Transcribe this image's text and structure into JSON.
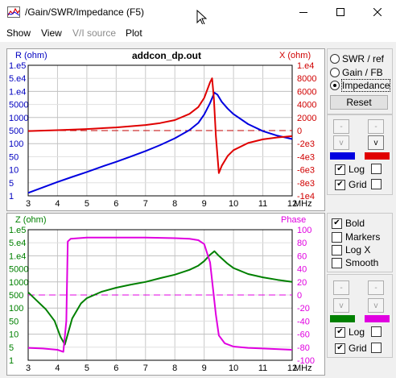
{
  "window": {
    "title": "/Gain/SWR/Impedance (F5)"
  },
  "menu": [
    "Show",
    "View",
    "V/I source",
    "Plot"
  ],
  "menu_disabled_index": 2,
  "top_chart": {
    "title": "addcon_dp.out",
    "left_label": "R (ohm)",
    "right_label": "X (ohm)",
    "left_ticks": [
      "1.e5",
      "5.e4",
      "1.e4",
      "5000",
      "1000",
      "500",
      "100",
      "50",
      "10",
      "5",
      "1"
    ],
    "right_ticks": [
      "1.e4",
      "8000",
      "6000",
      "4000",
      "2000",
      "0",
      "-2e3",
      "-4e3",
      "-6e3",
      "-8e3",
      "-1e4"
    ],
    "x_ticks": [
      "3",
      "4",
      "5",
      "6",
      "7",
      "8",
      "9",
      "10",
      "11",
      "12"
    ],
    "x_unit": "MHz"
  },
  "bottom_chart": {
    "left_label": "Z (ohm)",
    "right_label": "Phase",
    "left_ticks": [
      "1.e5",
      "5.e4",
      "1.e4",
      "5000",
      "1000",
      "500",
      "100",
      "50",
      "10",
      "5",
      "1"
    ],
    "right_ticks": [
      "100",
      "80",
      "60",
      "40",
      "20",
      "0",
      "-20",
      "-40",
      "-60",
      "-80",
      "-100"
    ],
    "x_ticks": [
      "3",
      "4",
      "5",
      "6",
      "7",
      "8",
      "9",
      "10",
      "11",
      "12"
    ],
    "x_unit": "MHz"
  },
  "chart_data": [
    {
      "type": "line",
      "title": "addcon_dp.out",
      "xlabel": "MHz",
      "ylabel": "R (ohm)",
      "y2label": "X (ohm)",
      "xlim": [
        3,
        12
      ],
      "ylim": [
        1,
        100000
      ],
      "y_scale": "log",
      "y2lim": [
        -10000,
        10000
      ],
      "grid": true,
      "series": [
        {
          "name": "R (ohm)",
          "axis": "left",
          "color": "#0000e0",
          "x": [
            3.0,
            3.5,
            4.0,
            4.5,
            5.0,
            5.5,
            6.0,
            6.5,
            7.0,
            7.5,
            8.0,
            8.5,
            8.8,
            9.0,
            9.2,
            9.35,
            9.45,
            9.6,
            9.8,
            10.0,
            10.5,
            11.0,
            11.5,
            12.0
          ],
          "y": [
            1.3,
            2.1,
            3.4,
            5.3,
            8.2,
            13,
            20,
            32,
            52,
            88,
            160,
            330,
            620,
            1300,
            3600,
            9000,
            7500,
            4000,
            2200,
            1350,
            560,
            300,
            200,
            150
          ]
        },
        {
          "name": "X (ohm)",
          "axis": "right",
          "color": "#e00000",
          "x": [
            3.0,
            4.0,
            5.0,
            6.0,
            7.0,
            7.5,
            8.0,
            8.5,
            8.8,
            9.0,
            9.2,
            9.27,
            9.33,
            9.4,
            9.5,
            9.6,
            9.8,
            10.0,
            10.5,
            11.0,
            11.5,
            12.0
          ],
          "y": [
            -80,
            60,
            240,
            480,
            850,
            1150,
            1600,
            2550,
            3600,
            5000,
            7400,
            8000,
            5000,
            -800,
            -6500,
            -5400,
            -3900,
            -3000,
            -1900,
            -1350,
            -1050,
            -850
          ]
        }
      ],
      "reference_line": {
        "axis": "right",
        "y": 0,
        "style": "dashed",
        "color": "#c00000"
      }
    },
    {
      "type": "line",
      "xlabel": "MHz",
      "ylabel": "Z (ohm)",
      "y2label": "Phase",
      "xlim": [
        3,
        12
      ],
      "ylim": [
        1,
        100000
      ],
      "y_scale": "log",
      "y2lim": [
        -100,
        100
      ],
      "grid": true,
      "series": [
        {
          "name": "Z (ohm)",
          "axis": "left",
          "color": "#008000",
          "x": [
            3.0,
            3.3,
            3.6,
            3.9,
            4.1,
            4.25,
            4.35,
            4.5,
            4.8,
            5.0,
            5.5,
            6.0,
            6.5,
            7.0,
            7.5,
            8.0,
            8.5,
            8.8,
            9.0,
            9.2,
            9.35,
            9.5,
            9.8,
            10.0,
            10.5,
            11.0,
            11.5,
            12.0
          ],
          "y": [
            400,
            190,
            90,
            32,
            8,
            4,
            10,
            40,
            150,
            240,
            420,
            600,
            790,
            1000,
            1400,
            1900,
            2900,
            4200,
            6300,
            11000,
            15000,
            10000,
            5000,
            3400,
            2000,
            1500,
            1200,
            1000
          ]
        },
        {
          "name": "Phase",
          "axis": "right",
          "color": "#e000e0",
          "x": [
            3.0,
            3.5,
            4.0,
            4.2,
            4.3,
            4.35,
            4.45,
            5.0,
            6.0,
            7.0,
            8.0,
            8.5,
            8.8,
            9.0,
            9.2,
            9.3,
            9.4,
            9.5,
            9.7,
            10.0,
            10.5,
            11.0,
            12.0
          ],
          "y": [
            -81,
            -82,
            -84,
            -87,
            -40,
            82,
            86,
            88,
            88,
            88,
            87,
            86,
            84,
            78,
            50,
            10,
            -30,
            -62,
            -74,
            -79,
            -81,
            -82,
            -84
          ]
        }
      ],
      "reference_line": {
        "axis": "right",
        "y": 0,
        "style": "dashed",
        "color": "#e000e0"
      }
    }
  ],
  "right_panel_top": {
    "radio_options": [
      "SWR / ref",
      "Gain / FB",
      "Impedance"
    ],
    "selected_index": 2,
    "reset_label": "Reset",
    "up_labels": [
      "-",
      "-"
    ],
    "down_labels": [
      "v",
      "v"
    ],
    "colors": [
      "#0000e0",
      "#e00000"
    ],
    "log_label": "Log",
    "grid_label": "Grid",
    "log_checked": true,
    "grid_checked": true
  },
  "right_panel_bottom": {
    "options": [
      "Bold",
      "Markers",
      "Log X",
      "Smooth"
    ],
    "checked": [
      true,
      false,
      false,
      false
    ],
    "up_labels": [
      "-",
      "-"
    ],
    "down_labels": [
      "v",
      "v"
    ],
    "colors": [
      "#008000",
      "#e000e0"
    ],
    "log_label": "Log",
    "grid_label": "Grid",
    "log_checked": true,
    "grid_checked": true
  }
}
